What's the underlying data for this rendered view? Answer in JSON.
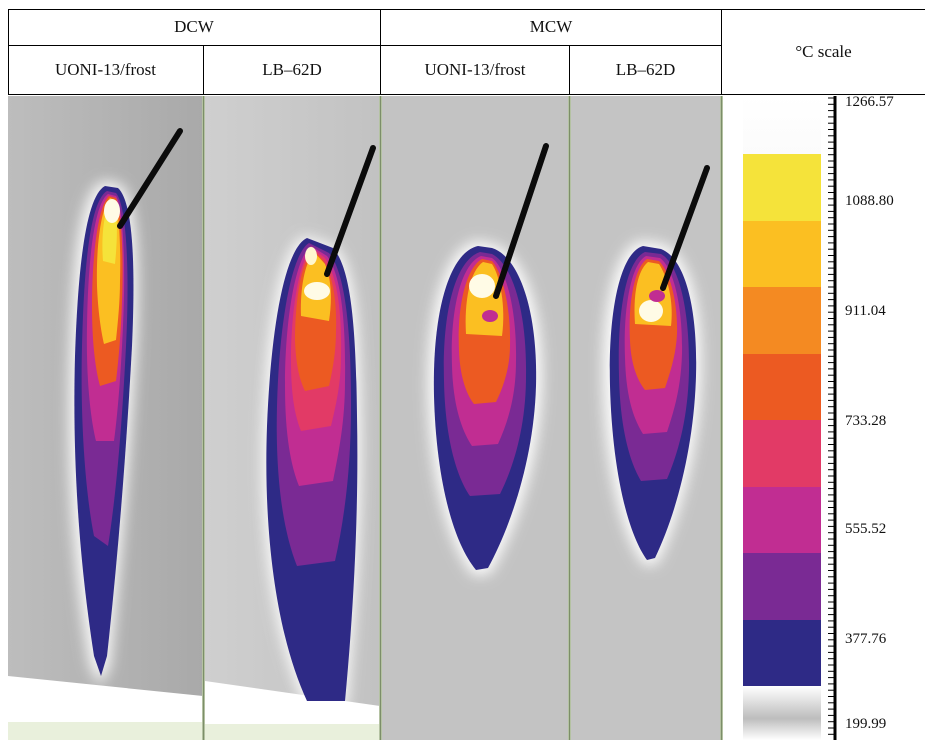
{
  "header": {
    "group_dcw": "DCW",
    "group_mcw": "MCW",
    "scale_title": "°C scale",
    "sub_dcw_uoni": "UONI-13/frost",
    "sub_dcw_lb": "LB–62D",
    "sub_mcw_uoni": "UONI-13/frost",
    "sub_mcw_lb": "LB–62D"
  },
  "scale": {
    "ticks": [
      "1266.57",
      "1088.80",
      "911.04",
      "733.28",
      "555.52",
      "377.76",
      "199.99"
    ],
    "bands": [
      "#f5e33a",
      "#fbbf22",
      "#f48a22",
      "#ec5a22",
      "#e23a66",
      "#c12d92",
      "#7a2a94",
      "#2e2a86"
    ]
  },
  "colors": {
    "background_gray": "#c6c6c6",
    "plume_outer": "#2e2a86",
    "electrode": "#0b0b0b"
  }
}
